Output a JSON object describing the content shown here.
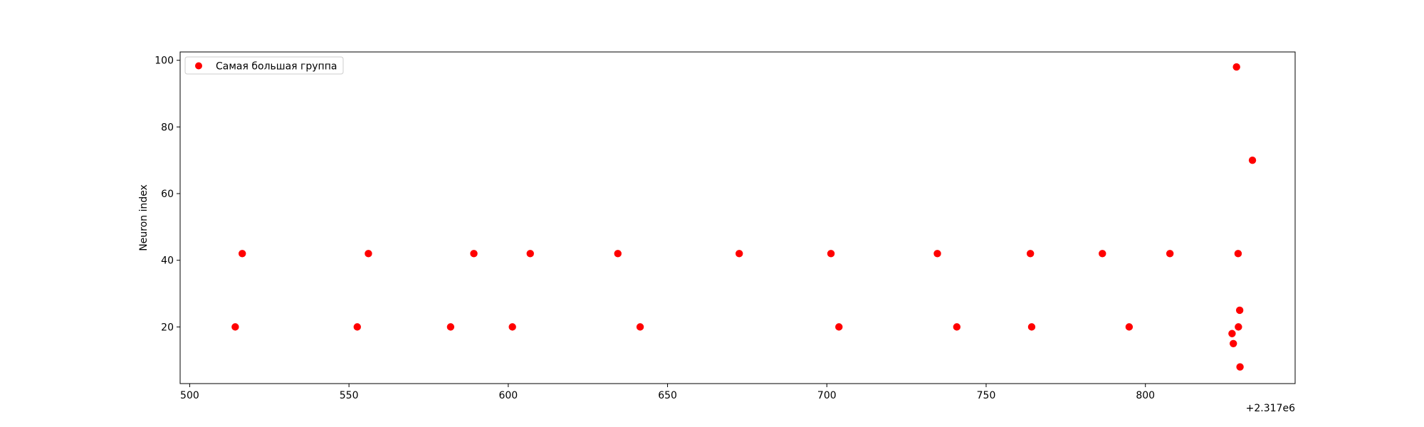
{
  "chart_data": {
    "type": "scatter",
    "title": "",
    "xlabel": "",
    "ylabel": "Neuron index",
    "x_offset_label": "+2.317e6",
    "xlim": [
      497,
      847
    ],
    "ylim": [
      3,
      102.5
    ],
    "xticks": [
      500,
      550,
      600,
      650,
      700,
      750,
      800
    ],
    "yticks": [
      20,
      40,
      60,
      80,
      100
    ],
    "grid": false,
    "legend_position": "upper left",
    "series": [
      {
        "name": "Самая большая группа",
        "color": "#ff0000",
        "points": [
          {
            "x": 514.3,
            "y": 20
          },
          {
            "x": 516.5,
            "y": 42
          },
          {
            "x": 552.6,
            "y": 20
          },
          {
            "x": 556.1,
            "y": 42
          },
          {
            "x": 581.9,
            "y": 20
          },
          {
            "x": 589.2,
            "y": 42
          },
          {
            "x": 601.3,
            "y": 20
          },
          {
            "x": 606.9,
            "y": 42
          },
          {
            "x": 634.4,
            "y": 42
          },
          {
            "x": 641.4,
            "y": 20
          },
          {
            "x": 672.5,
            "y": 42
          },
          {
            "x": 701.3,
            "y": 42
          },
          {
            "x": 703.8,
            "y": 20
          },
          {
            "x": 734.7,
            "y": 42
          },
          {
            "x": 740.8,
            "y": 20
          },
          {
            "x": 763.9,
            "y": 42
          },
          {
            "x": 764.3,
            "y": 20
          },
          {
            "x": 786.5,
            "y": 42
          },
          {
            "x": 794.9,
            "y": 20
          },
          {
            "x": 807.7,
            "y": 42
          },
          {
            "x": 827.2,
            "y": 18
          },
          {
            "x": 827.6,
            "y": 15
          },
          {
            "x": 828.6,
            "y": 98
          },
          {
            "x": 829.1,
            "y": 42
          },
          {
            "x": 829.2,
            "y": 20
          },
          {
            "x": 829.6,
            "y": 25
          },
          {
            "x": 829.7,
            "y": 8
          },
          {
            "x": 833.6,
            "y": 70
          }
        ]
      }
    ]
  }
}
